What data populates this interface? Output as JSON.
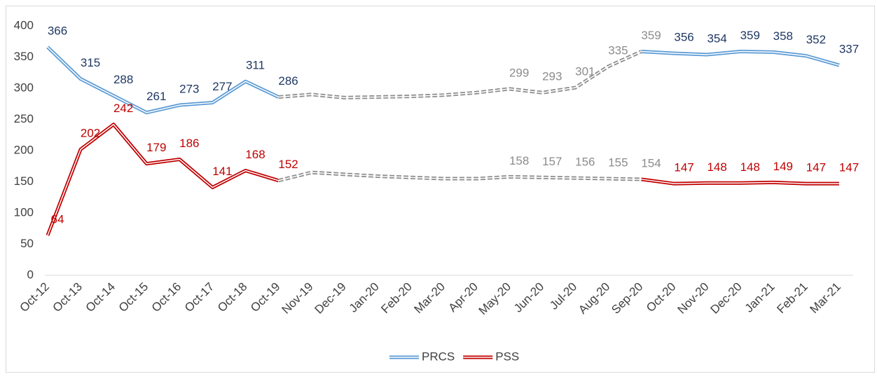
{
  "chart_data": {
    "type": "line",
    "categories": [
      "Oct-12",
      "Oct-13",
      "Oct-14",
      "Oct-15",
      "Oct-16",
      "Oct-17",
      "Oct-18",
      "Oct-19",
      "Nov-19",
      "Dec-19",
      "Jan-20",
      "Feb-20",
      "Mar-20",
      "Apr-20",
      "May-20",
      "Jun-20",
      "Jul-20",
      "Aug-20",
      "Sep-20",
      "Oct-20",
      "Nov-20",
      "Dec-20",
      "Jan-21",
      "Feb-21",
      "Mar-21"
    ],
    "series": [
      {
        "name": "PRCS",
        "color": "#5b9bd5",
        "label_color": "#1f3864",
        "values": [
          366,
          315,
          288,
          261,
          273,
          277,
          311,
          286,
          290,
          285,
          286,
          287,
          289,
          293,
          299,
          293,
          301,
          335,
          359,
          356,
          354,
          359,
          358,
          352,
          337
        ],
        "value_labels": [
          "366",
          "315",
          "288",
          "261",
          "273",
          "277",
          "311",
          "286",
          null,
          null,
          null,
          null,
          null,
          null,
          "299",
          "293",
          "301",
          "335",
          "359",
          "356",
          "354",
          "359",
          "358",
          "352",
          "337"
        ]
      },
      {
        "name": "PSS",
        "color": "#c00000",
        "label_color": "#c00000",
        "values": [
          64,
          202,
          242,
          179,
          186,
          141,
          168,
          152,
          165,
          162,
          159,
          157,
          155,
          155,
          158,
          157,
          156,
          155,
          154,
          147,
          148,
          148,
          149,
          147,
          147
        ],
        "value_labels": [
          "64",
          "202",
          "242",
          "179",
          "186",
          "141",
          "168",
          "152",
          null,
          null,
          null,
          null,
          null,
          null,
          "158",
          "157",
          "156",
          "155",
          "154",
          "147",
          "148",
          "148",
          "149",
          "147",
          "147"
        ]
      }
    ],
    "projected": {
      "from": "Oct-19",
      "to": "Sep-20",
      "color": "#8c8c8c"
    },
    "ylim": [
      0,
      400
    ],
    "yticks": [
      0,
      50,
      100,
      150,
      200,
      250,
      300,
      350,
      400
    ],
    "grid": false,
    "legend": "bottom"
  }
}
